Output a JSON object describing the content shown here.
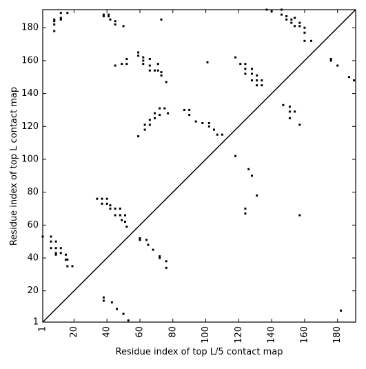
{
  "chart_data": {
    "type": "scatter",
    "xlabel": "Residue index of top L/5 contact map",
    "ylabel": "Residue index of top L contact map",
    "xlim": [
      1,
      191
    ],
    "ylim": [
      1,
      191
    ],
    "xticks": [
      1,
      20,
      40,
      60,
      80,
      100,
      120,
      140,
      160,
      180
    ],
    "yticks": [
      1,
      20,
      40,
      60,
      80,
      100,
      120,
      140,
      160,
      180
    ],
    "diagonal": true,
    "series": [
      {
        "color": "#000000",
        "x": [
          8,
          8,
          8,
          8,
          12,
          12,
          12,
          16,
          38,
          38,
          41,
          41,
          42,
          45,
          45,
          50,
          73,
          59,
          59,
          62,
          62,
          62,
          66,
          66,
          66,
          69,
          71,
          71,
          73,
          73,
          76,
          45,
          49,
          52,
          52,
          59,
          63,
          63,
          66,
          66,
          69,
          69,
          72,
          72,
          75,
          77,
          87,
          90,
          90,
          94,
          98,
          102,
          102,
          105,
          107,
          110,
          101,
          118,
          121,
          124,
          124,
          124,
          128,
          128,
          128,
          131,
          131,
          131,
          134,
          134,
          137,
          140,
          146,
          146,
          149,
          149,
          152,
          152,
          154,
          154,
          157,
          157,
          160,
          160,
          160,
          164,
          176,
          176,
          180,
          187,
          190,
          118,
          124,
          124,
          126,
          128,
          131,
          147,
          151,
          151,
          151,
          154,
          157,
          157,
          182,
          1,
          6,
          6,
          6,
          9,
          9,
          9,
          9,
          12,
          12,
          15,
          15,
          16,
          16,
          19,
          34,
          37,
          37,
          40,
          40,
          42,
          42,
          45,
          45,
          48,
          48,
          49,
          51,
          51,
          52,
          60,
          60,
          64,
          65,
          68,
          72,
          72,
          76,
          76,
          38,
          38,
          43,
          46,
          50,
          53
        ],
        "y": [
          185,
          184,
          182,
          178,
          186,
          185,
          189,
          189,
          188,
          187,
          188,
          187,
          185,
          184,
          182,
          181,
          185,
          165,
          163,
          162,
          160,
          158,
          161,
          157,
          154,
          154,
          154,
          158,
          151,
          153,
          147,
          157,
          158,
          161,
          158,
          114,
          118,
          121,
          121,
          124,
          125,
          128,
          127,
          131,
          131,
          128,
          130,
          130,
          127,
          123,
          122,
          120,
          122,
          118,
          115,
          115,
          159,
          162,
          158,
          158,
          155,
          152,
          155,
          152,
          148,
          151,
          148,
          145,
          148,
          145,
          191,
          190,
          191,
          188,
          187,
          185,
          185,
          183,
          186,
          181,
          183,
          181,
          180,
          177,
          172,
          172,
          161,
          160,
          157,
          150,
          148,
          102,
          70,
          67,
          94,
          90,
          78,
          133,
          132,
          129,
          125,
          129,
          121,
          66,
          8,
          53,
          53,
          50,
          46,
          50,
          46,
          43,
          42,
          46,
          43,
          42,
          39,
          39,
          35,
          35,
          76,
          76,
          73,
          73,
          76,
          70,
          72,
          70,
          66,
          70,
          66,
          63,
          66,
          62,
          59,
          52,
          51,
          51,
          48,
          45,
          41,
          40,
          38,
          34,
          16,
          14,
          13,
          9,
          6,
          2
        ]
      }
    ]
  }
}
